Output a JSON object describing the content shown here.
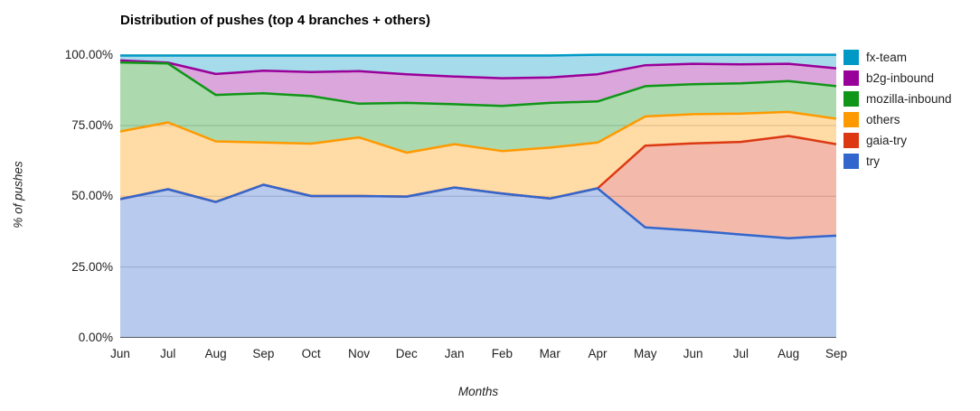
{
  "title": "Distribution of pushes (top 4 branches + others)",
  "chart_data": {
    "type": "area",
    "stacked_percent": true,
    "title": "Distribution of pushes (top 4 branches + others)",
    "xlabel": "Months",
    "ylabel": "% of pushes",
    "ylim": [
      0,
      100
    ],
    "grid": true,
    "legend_position": "right",
    "x": [
      "Jun",
      "Jul",
      "Aug",
      "Sep",
      "Oct",
      "Nov",
      "Dec",
      "Jan",
      "Feb",
      "Mar",
      "Apr",
      "May",
      "Jun",
      "Jul",
      "Aug",
      "Sep"
    ],
    "yticks": [
      {
        "label": "0.00%",
        "value": 0
      },
      {
        "label": "25.00%",
        "value": 25
      },
      {
        "label": "50.00%",
        "value": 50
      },
      {
        "label": "75.00%",
        "value": 75
      },
      {
        "label": "100.00%",
        "value": 100
      }
    ],
    "series": [
      {
        "name": "try",
        "color": "#3366CC",
        "values": [
          49.0,
          52.5,
          48.0,
          54.1,
          50.1,
          50.1,
          49.9,
          53.1,
          51.0,
          49.2,
          52.8,
          39.0,
          37.9,
          36.5,
          35.2,
          36.1
        ]
      },
      {
        "name": "gaia-try",
        "color": "#DC3912",
        "values": [
          0,
          0,
          0,
          0,
          0,
          0,
          0,
          0,
          0,
          0,
          0,
          28.9,
          30.8,
          32.7,
          36.1,
          32.3
        ]
      },
      {
        "name": "others",
        "color": "#FF9900",
        "values": [
          23.9,
          23.6,
          21.4,
          14.9,
          18.5,
          20.7,
          15.5,
          15.3,
          15.0,
          18.0,
          16.2,
          10.3,
          10.3,
          10.0,
          8.5,
          9.0
        ]
      },
      {
        "name": "mozilla-inbound",
        "color": "#109618",
        "values": [
          24.4,
          20.8,
          16.4,
          17.4,
          16.8,
          11.9,
          17.6,
          14.1,
          15.9,
          15.8,
          14.5,
          10.7,
          10.6,
          10.7,
          10.9,
          11.5
        ]
      },
      {
        "name": "b2g-inbound",
        "color": "#990099",
        "values": [
          0.7,
          0.3,
          7.4,
          8.0,
          8.5,
          11.5,
          10.1,
          9.8,
          9.8,
          9.0,
          9.6,
          7.4,
          7.2,
          6.7,
          6.1,
          6.3
        ]
      },
      {
        "name": "fx-team",
        "color": "#0099C6",
        "values": [
          1.7,
          2.5,
          6.5,
          5.3,
          5.8,
          5.5,
          6.6,
          7.4,
          8.0,
          7.7,
          6.9,
          3.7,
          3.2,
          3.4,
          3.2,
          4.8
        ]
      }
    ],
    "legend_order": [
      "fx-team",
      "b2g-inbound",
      "mozilla-inbound",
      "others",
      "gaia-try",
      "try"
    ],
    "style": {
      "fill_opacity": 0.35,
      "line_width": 2.5,
      "gridline_color": "#cccccc",
      "axis_line_color": "#333333"
    }
  }
}
